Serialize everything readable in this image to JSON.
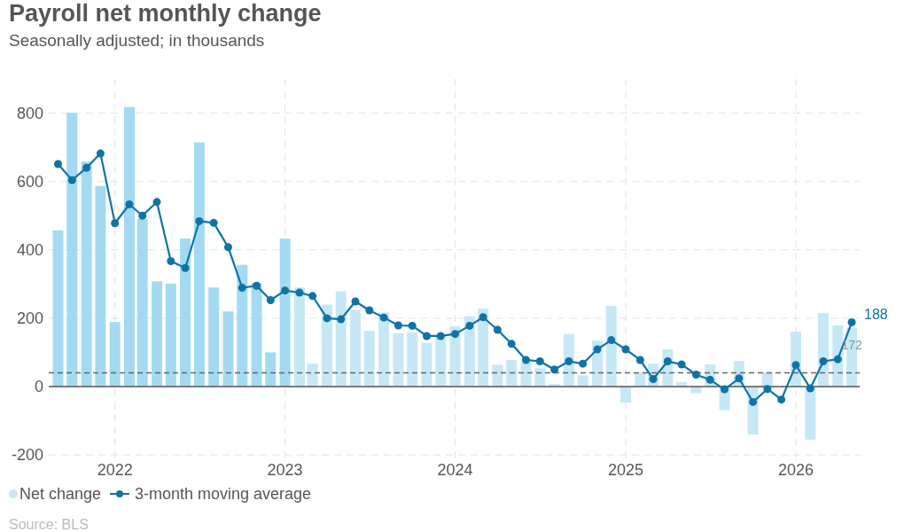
{
  "chart_data": {
    "type": "bar",
    "title": "Payroll net monthly change",
    "subtitle": "Seasonally adjusted; in thousands",
    "x": [
      "2021-09",
      "2021-10",
      "2021-11",
      "2021-12",
      "2022-01",
      "2022-02",
      "2022-03",
      "2022-04",
      "2022-05",
      "2022-06",
      "2022-07",
      "2022-08",
      "2022-09",
      "2022-10",
      "2022-11",
      "2022-12",
      "2023-01",
      "2023-02",
      "2023-03",
      "2023-04",
      "2023-05",
      "2023-06",
      "2023-07",
      "2023-08",
      "2023-09",
      "2023-10",
      "2023-11",
      "2023-12",
      "2024-01",
      "2024-02",
      "2024-03",
      "2024-04",
      "2024-05",
      "2024-06",
      "2024-07",
      "2024-08",
      "2024-09",
      "2024-10",
      "2024-11",
      "2024-12",
      "2025-01",
      "2025-02",
      "2025-03",
      "2025-04",
      "2025-05",
      "2025-06",
      "2025-07",
      "2025-08",
      "2025-09",
      "2025-10",
      "2025-11",
      "2025-12",
      "2026-01",
      "2026-02",
      "2026-03",
      "2026-04",
      "2026-05"
    ],
    "series": [
      {
        "name": "Net change",
        "color": "#c6e8f6",
        "colors": [
          "#a3daf2",
          "#a3daf2",
          "#a3daf2",
          "#a3daf2",
          "#a3daf2",
          "#a3daf2",
          "#a3daf2",
          "#a3daf2",
          "#a3daf2",
          "#a3daf2",
          "#a3daf2",
          "#a3daf2",
          "#a3daf2",
          "#a3daf2",
          "#a3daf2",
          "#a3daf2",
          "#a3daf2",
          "#c6e8f6",
          "#c6e8f6",
          "#c6e8f6",
          "#c6e8f6",
          "#c6e8f6",
          "#c6e8f6",
          "#c6e8f6",
          "#c6e8f6",
          "#c6e8f6",
          "#c6e8f6",
          "#c6e8f6",
          "#c6e8f6",
          "#c6e8f6",
          "#c6e8f6",
          "#c6e8f6",
          "#c6e8f6",
          "#c6e8f6",
          "#c6e8f6",
          "#c6e8f6",
          "#c6e8f6",
          "#c6e8f6",
          "#c6e8f6",
          "#c6e8f6",
          "#c6e8f6",
          "#c6e8f6",
          "#c6e8f6",
          "#c6e8f6",
          "#c6e8f6",
          "#c6e8f6",
          "#c6e8f6",
          "#c6e8f6",
          "#c6e8f6",
          "#c6e8f6",
          "#c6e8f6",
          null,
          "#c6e8f6",
          "#c6e8f6",
          "#c6e8f6",
          "#c6e8f6",
          "#c6e8f6"
        ],
        "values": [
          457,
          801,
          658,
          587,
          189,
          818,
          491,
          308,
          301,
          433,
          714,
          290,
          220,
          356,
          303,
          100,
          433,
          290,
          67,
          240,
          279,
          225,
          163,
          217,
          156,
          159,
          128,
          150,
          176,
          206,
          228,
          64,
          78,
          72,
          54,
          8,
          154,
          33,
          134,
          236,
          -47,
          41,
          67,
          109,
          13,
          -19,
          65,
          -69,
          75,
          -140,
          41,
          null,
          161,
          -155,
          215,
          179,
          172
        ],
        "value_labels": [
          null,
          null,
          null,
          null,
          null,
          null,
          null,
          null,
          null,
          null,
          null,
          null,
          null,
          null,
          null,
          null,
          null,
          null,
          null,
          null,
          null,
          null,
          null,
          null,
          null,
          null,
          null,
          null,
          null,
          null,
          null,
          null,
          null,
          null,
          null,
          null,
          null,
          null,
          null,
          null,
          null,
          null,
          null,
          null,
          null,
          null,
          null,
          null,
          null,
          null,
          null,
          null,
          null,
          null,
          null,
          null,
          "172"
        ]
      },
      {
        "name": "3-month moving average",
        "type": "line",
        "color": "#0f73a5",
        "marker": "circle",
        "values": [
          651,
          604,
          640,
          682,
          478,
          533,
          500,
          540,
          367,
          347,
          484,
          479,
          408,
          289,
          295,
          253,
          281,
          275,
          265,
          200,
          197,
          249,
          223,
          202,
          179,
          178,
          148,
          148,
          154,
          178,
          203,
          166,
          125,
          78,
          74,
          50,
          74,
          67,
          109,
          136,
          109,
          78,
          22,
          74,
          65,
          35,
          20,
          -8,
          24,
          -45,
          -7,
          -38,
          63,
          -5,
          74,
          80,
          188
        ],
        "value_labels": [
          null,
          null,
          null,
          null,
          null,
          null,
          null,
          null,
          null,
          null,
          null,
          null,
          null,
          null,
          null,
          null,
          null,
          null,
          null,
          null,
          null,
          null,
          null,
          null,
          null,
          null,
          null,
          null,
          null,
          null,
          null,
          null,
          null,
          null,
          null,
          null,
          null,
          null,
          null,
          null,
          null,
          null,
          null,
          null,
          null,
          null,
          null,
          null,
          null,
          null,
          null,
          null,
          null,
          null,
          null,
          null,
          "188"
        ]
      }
    ],
    "xlim": [
      "2021-08-12",
      "2026-05-18"
    ],
    "xticks": [
      {
        "value": "2022",
        "label": "2022"
      },
      {
        "value": "2023",
        "label": "2023"
      },
      {
        "value": "2024",
        "label": "2024"
      },
      {
        "value": "2025",
        "label": "2025"
      },
      {
        "value": "2026",
        "label": "2026"
      }
    ],
    "ylim": [
      -210,
      900
    ],
    "yticks": [
      -200,
      0,
      200,
      400,
      600,
      800
    ],
    "grid": true,
    "legend": "bottom",
    "ref_lines": [
      {
        "axis": "y",
        "value": 0,
        "color": "#555555",
        "line_style": "solid"
      },
      {
        "axis": "y",
        "value": 40,
        "color": "#666666",
        "line_style": "dashed"
      }
    ],
    "annotations": [
      "Source: BLS"
    ]
  }
}
